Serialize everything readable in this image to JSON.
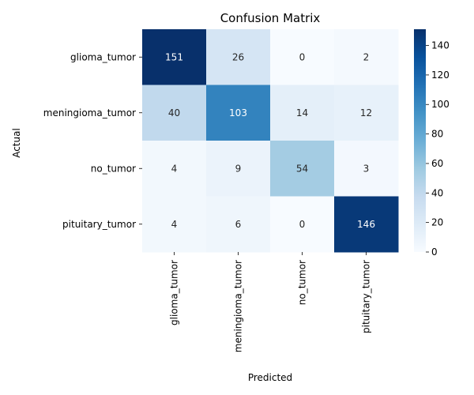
{
  "chart_data": {
    "type": "heatmap",
    "title": "Confusion Matrix",
    "xlabel": "Predicted",
    "ylabel": "Actual",
    "x_categories": [
      "glioma_tumor",
      "meningioma_tumor",
      "no_tumor",
      "pituitary_tumor"
    ],
    "y_categories": [
      "glioma_tumor",
      "meningioma_tumor",
      "no_tumor",
      "pituitary_tumor"
    ],
    "values": [
      [
        151,
        26,
        0,
        2
      ],
      [
        40,
        103,
        14,
        12
      ],
      [
        4,
        9,
        54,
        3
      ],
      [
        4,
        6,
        0,
        146
      ]
    ],
    "colormap": "Blues",
    "colorbar": {
      "range": [
        0,
        151
      ],
      "ticks": [
        0,
        20,
        40,
        60,
        80,
        100,
        120,
        140
      ]
    }
  }
}
